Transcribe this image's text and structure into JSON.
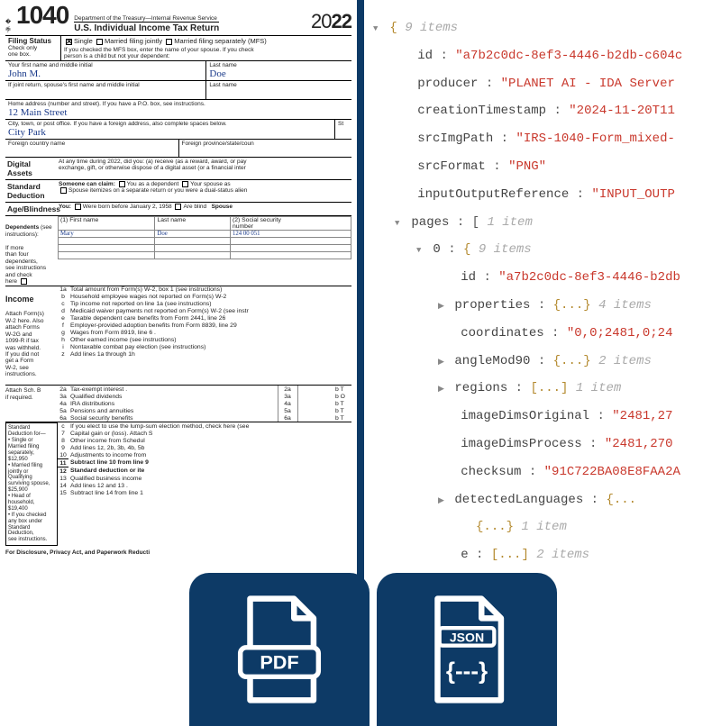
{
  "form": {
    "form_word": "Form",
    "form_no": "1040",
    "dept": "Department of the Treasury—Internal Revenue Service",
    "title": "U.S. Individual Income Tax Return",
    "year_light": "20",
    "year_bold": "22",
    "filing": {
      "label": "Filing Status",
      "sub": "Check only\none box.",
      "single": "Single",
      "mfj": "Married filing jointly",
      "mfs": "Married filing separately (MFS)",
      "note": "If you checked the MFS box, enter the name of your spouse. If you check\nperson is a child but not your dependent:"
    },
    "name": {
      "l1": "Your first name and middle initial",
      "l2": "Last name",
      "v1": "John M.",
      "v2": "Doe",
      "j1": "If joint return, spouse's first name and middle initial",
      "j2": "Last name",
      "addr_l": "Home address (number and street). If you have a P.O. box, see instructions.",
      "addr_v": "12 Main Street",
      "city_l": "City, town, or post office. If you have a foreign address, also complete spaces below.",
      "city_v": "City Park",
      "st": "St",
      "fc": "Foreign country name",
      "fp": "Foreign province/state/coun"
    },
    "digital": {
      "lab": "Digital\nAssets",
      "txt": "At any time during 2022, did you: (a) receive (as a reward, award, or pay\nexchange, gift, or otherwise dispose of a digital asset (or a financial inter"
    },
    "std": {
      "lab": "Standard\nDeduction",
      "l1": "Someone can claim:",
      "c1": "You as a dependent",
      "c2": "Your spouse as",
      "l2": "Spouse itemizes on a separate return or you were a dual-status alien"
    },
    "age": {
      "lab": "Age/Blindness",
      "you": "You:",
      "b1": "Were born before January 2, 1958",
      "b2": "Are blind",
      "sp": "Spouse"
    },
    "dep": {
      "lab": "Dependents",
      "see": "(see instructions):",
      "c1": "(1) First name",
      "c2": "Last name",
      "c3": "(2) Social security\nnumber",
      "side": "If more\nthan four\ndependents,\nsee instructions\nand check\nhere",
      "fn": "Mary",
      "ln": "Doe",
      "ssn": "124 00 051"
    },
    "income": {
      "lab": "Income",
      "side": "Attach Form(s)\nW-2 here. Also\nattach Forms\nW-2G and\n1099-R if tax\nwas withheld.\nIf you did not\nget a Form\nW-2, see\ninstructions.",
      "lines": [
        {
          "n": "1a",
          "t": "Total amount from Form(s) W-2, box 1 (see instructions)"
        },
        {
          "n": "b",
          "t": "Household employee wages not reported on Form(s) W-2"
        },
        {
          "n": "c",
          "t": "Tip income not reported on line 1a (see instructions)"
        },
        {
          "n": "d",
          "t": "Medicaid waiver payments not reported on Form(s) W-2 (see instr"
        },
        {
          "n": "e",
          "t": "Taxable dependent care benefits from Form 2441, line 26"
        },
        {
          "n": "f",
          "t": "Employer-provided adoption benefits from Form 8839, line 29"
        },
        {
          "n": "g",
          "t": "Wages from Form 8919, line 6 ."
        },
        {
          "n": "h",
          "t": "Other earned income (see instructions)"
        },
        {
          "n": "i",
          "t": "Nontaxable combat pay election (see instructions)"
        },
        {
          "n": "z",
          "t": "Add lines 1a through 1h"
        }
      ],
      "block2": {
        "side": "Attach Sch. B\nif required.",
        "rows": [
          {
            "n": "2a",
            "t": "Tax-exempt interest .",
            "r": "2a",
            "rt": "b T"
          },
          {
            "n": "3a",
            "t": "Qualified dividends",
            "r": "3a",
            "rt": "b O"
          },
          {
            "n": "4a",
            "t": "IRA distributions",
            "r": "4a",
            "rt": "b T"
          },
          {
            "n": "5a",
            "t": "Pensions and annuities",
            "r": "5a",
            "rt": "b T"
          },
          {
            "n": "6a",
            "t": "Social security benefits",
            "r": "6a",
            "rt": "b T"
          }
        ]
      },
      "std_side": "Standard\nDeduction for—\n• Single or\nMarried filing\nseparately,\n$12,950\n• Married filing\njointly or\nQualifying\nsurviving spouse,\n$25,900\n• Head of\nhousehold,\n$19,400\n• If you checked\nany box under\nStandard\nDeduction,\nsee instructions.",
      "lines2": [
        {
          "n": "c",
          "t": "If you elect to use the lump-sum election method, check here (see"
        },
        {
          "n": "7",
          "t": "Capital gain or (loss). Attach S"
        },
        {
          "n": "8",
          "t": "Other income from Schedul"
        },
        {
          "n": "9",
          "t": "Add lines 1z, 2b, 3b, 4b, 5b"
        },
        {
          "n": "10",
          "t": "Adjustments to income from"
        },
        {
          "n": "11",
          "t": "Subtract line 10 from line 9"
        },
        {
          "n": "12",
          "t": "Standard deduction or ite"
        },
        {
          "n": "13",
          "t": "Qualified business income"
        },
        {
          "n": "14",
          "t": "Add lines 12 and 13 ."
        },
        {
          "n": "15",
          "t": "Subtract line 14 from line 1"
        }
      ]
    },
    "foot": "For Disclosure, Privacy Act, and Paperwork Reducti"
  },
  "json": {
    "root_meta": "9 items",
    "rows": [
      {
        "i": 1,
        "k": "id",
        "v": "\"a7b2c0dc-8ef3-4446-b2db-c604c"
      },
      {
        "i": 1,
        "k": "producer",
        "v": "\"PLANET AI - IDA Server"
      },
      {
        "i": 1,
        "k": "creationTimestamp",
        "v": "\"2024-11-20T11"
      },
      {
        "i": 1,
        "k": "srcImgPath",
        "v": "\"IRS-1040-Form_mixed-"
      },
      {
        "i": 1,
        "k": "srcFormat",
        "v": "\"PNG\""
      },
      {
        "i": 1,
        "k": "inputOutputReference",
        "v": "\"INPUT_OUTP"
      }
    ],
    "pages_meta": "1 item",
    "page0_meta": "9 items",
    "page_rows": [
      {
        "tri": "",
        "k": "id",
        "v": "\"a7b2c0dc-8ef3-4446-b2db"
      },
      {
        "tri": "▶",
        "k": "properties",
        "v": "{...}",
        "m": "4 items"
      },
      {
        "tri": "",
        "k": "coordinates",
        "v": "\"0,0;2481,0;24"
      },
      {
        "tri": "▶",
        "k": "angleMod90",
        "v": "{...}",
        "m": "2 items"
      },
      {
        "tri": "▶",
        "k": "regions",
        "v": "[...]",
        "m": "1 item"
      },
      {
        "tri": "",
        "k": "imageDimsOriginal",
        "v": "\"2481,27"
      },
      {
        "tri": "",
        "k": "imageDimsProcess",
        "v": "\"2481,270"
      },
      {
        "tri": "",
        "k": "checksum",
        "v": "\"91C722BA08E8FAA2A"
      },
      {
        "tri": "▶",
        "k": "detectedLanguages",
        "v": "{..."
      }
    ],
    "tail": [
      {
        "tri": "",
        "k": "",
        "v": "{...}",
        "m": "1 item"
      },
      {
        "tri": "",
        "k": "e",
        "v": "[...]",
        "m": "2 items"
      }
    ]
  },
  "colors": {
    "navy": "#0d3a66",
    "str": "#c9382c",
    "brace": "#b48a2f",
    "hand": "#1a3a8a"
  }
}
